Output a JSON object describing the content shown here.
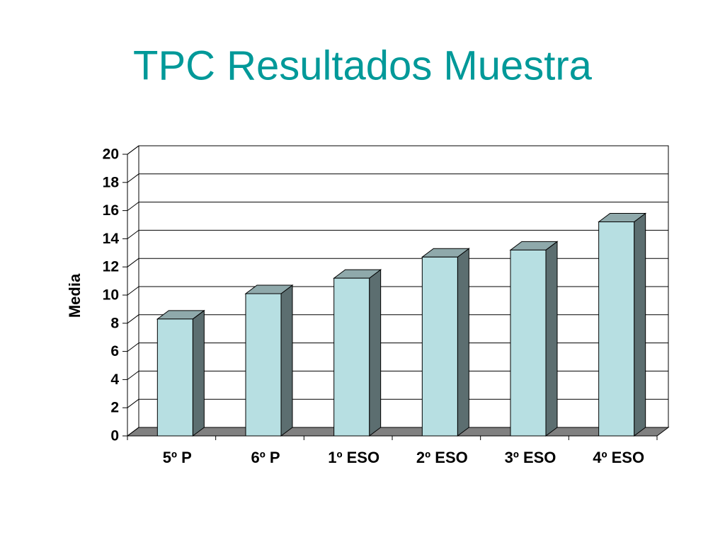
{
  "chart_data": {
    "type": "bar3d",
    "title": "TPC Resultados Muestra",
    "y_label": "Media",
    "categories": [
      "5º P",
      "6º P",
      "1º ESO",
      "2º ESO",
      "3º ESO",
      "4º ESO"
    ],
    "values": [
      8.3,
      10.1,
      11.2,
      12.7,
      13.2,
      15.2
    ],
    "color": "#b7dfe2",
    "ylim": [
      0,
      20
    ],
    "yticks": [
      0,
      2,
      4,
      6,
      8,
      10,
      12,
      14,
      16,
      18,
      20
    ],
    "grid": true
  }
}
